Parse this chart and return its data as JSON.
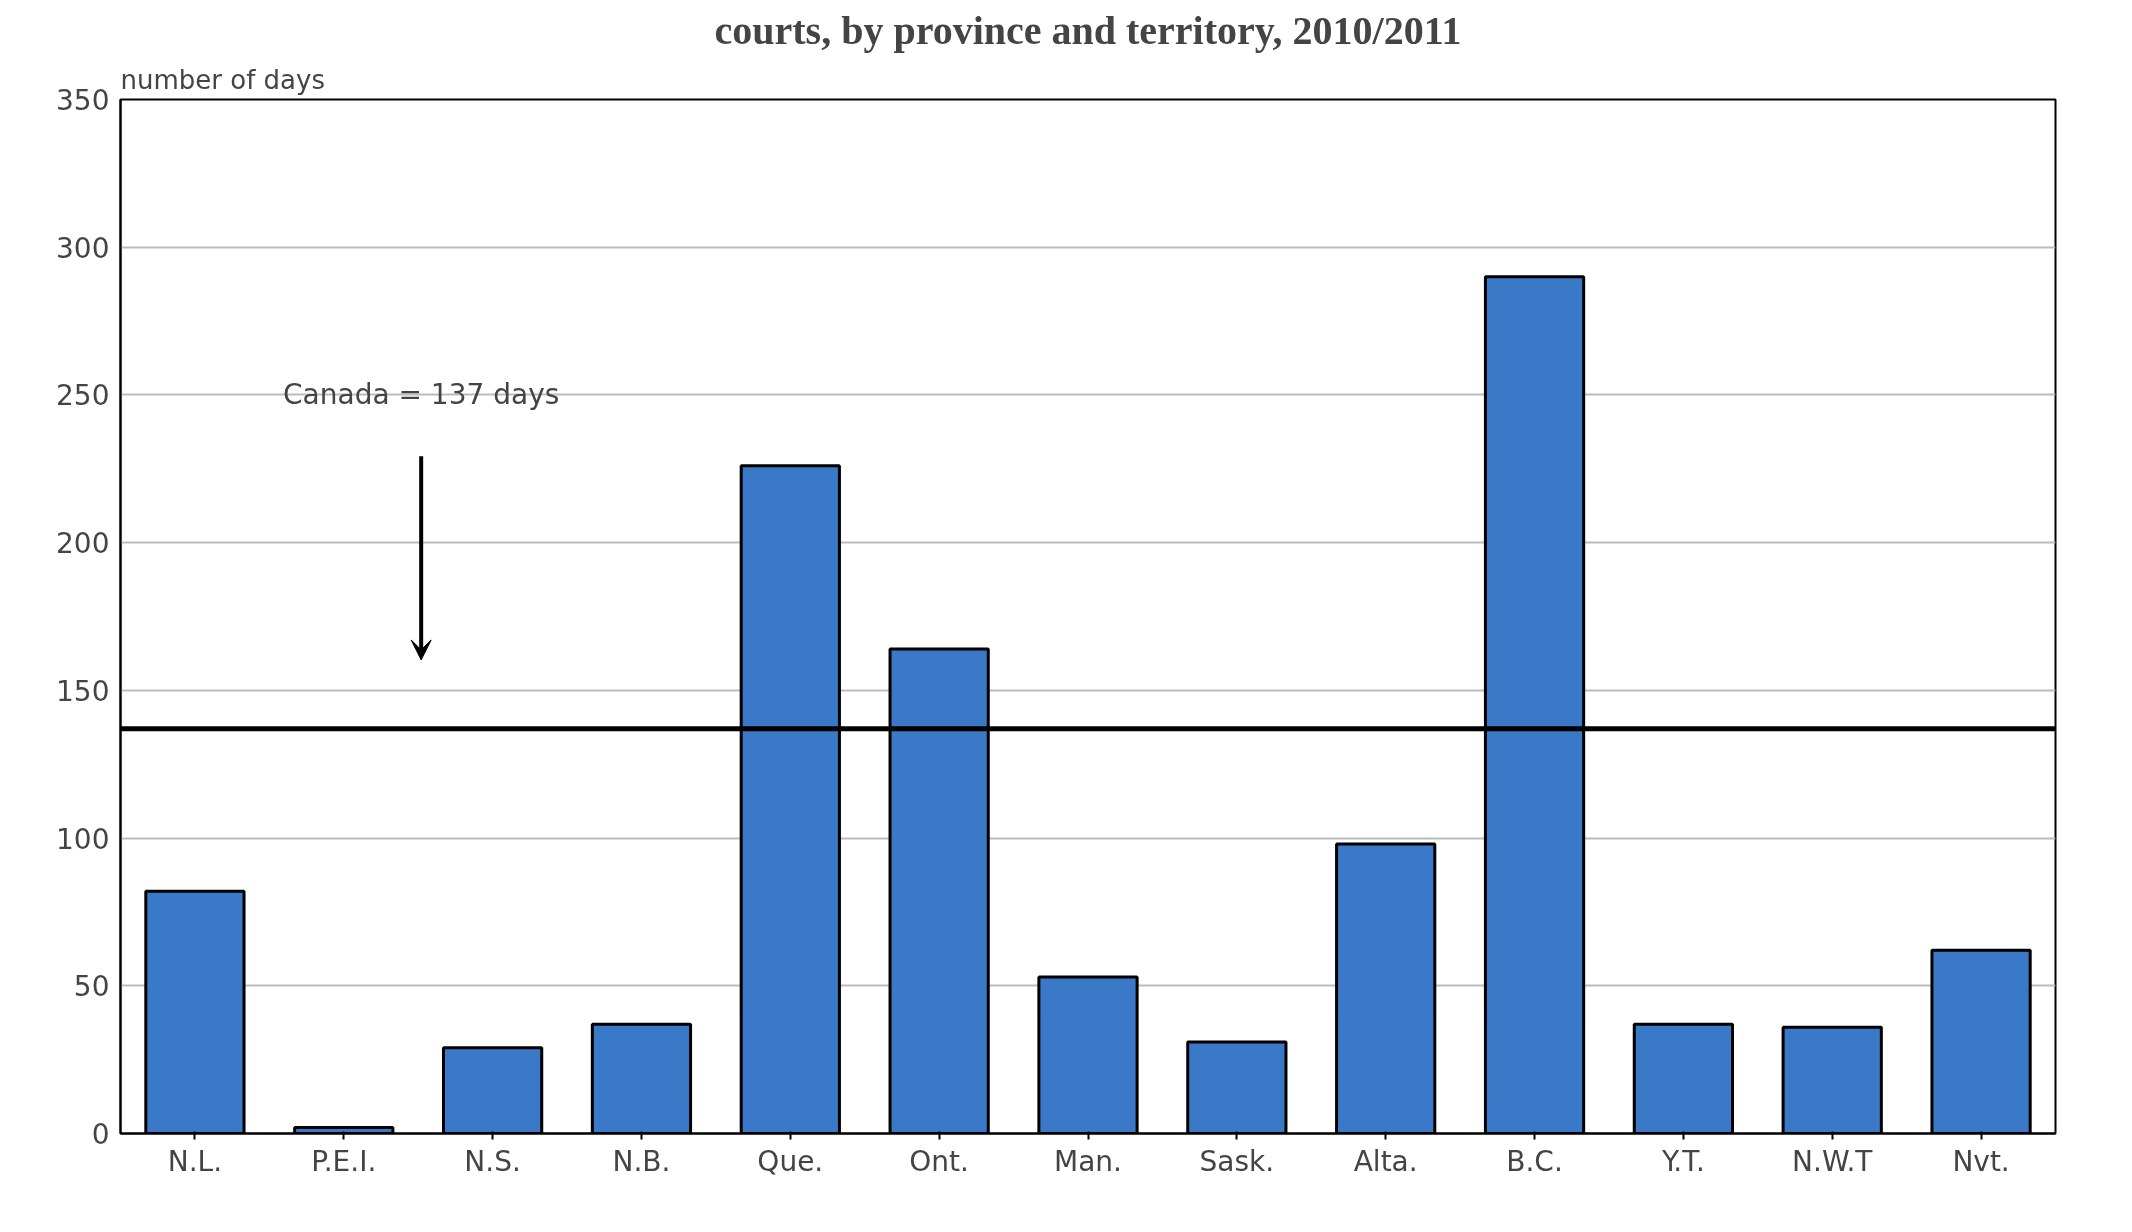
{
  "chart_data": {
    "type": "bar",
    "title": "courts, by province and territory, 2010/2011",
    "ylabel": "number of days",
    "categories": [
      "N.L.",
      "P.E.I.",
      "N.S.",
      "N.B.",
      "Que.",
      "Ont.",
      "Man.",
      "Sask.",
      "Alta.",
      "B.C.",
      "Y.T.",
      "N.W.T",
      "Nvt."
    ],
    "values": [
      82,
      2,
      29,
      37,
      226,
      164,
      53,
      31,
      98,
      290,
      37,
      36,
      62
    ],
    "color": "#3a78c8",
    "ylim": [
      0,
      350
    ],
    "yticks": [
      0,
      50,
      100,
      150,
      200,
      250,
      300,
      350
    ],
    "grid": "y",
    "ref_lines": [
      {
        "axis": "y",
        "value": 137,
        "color": "#000000",
        "line_style": "solid"
      }
    ],
    "annotations": [
      "Canada = 137 days"
    ]
  }
}
